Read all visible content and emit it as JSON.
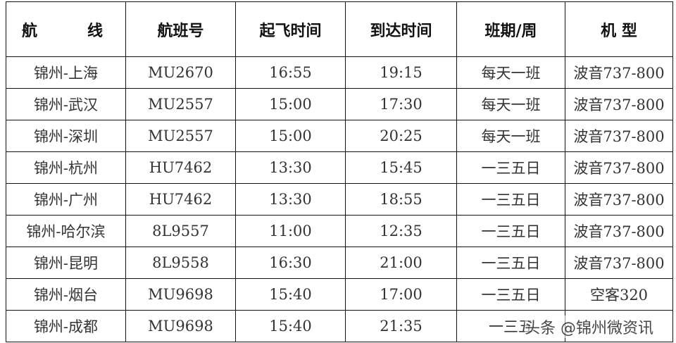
{
  "headers": {
    "route_a": "航",
    "route_b": "线",
    "flight": "航班号",
    "depart": "起飞时间",
    "arrive": "到达时间",
    "schedule": "班期/周",
    "aircraft": "机 型"
  },
  "rows": [
    {
      "route": "锦州-上海",
      "flight": "MU2670",
      "depart": "16:55",
      "arrive": "19:15",
      "schedule": "每天一班",
      "aircraft": "波音737-800"
    },
    {
      "route": "锦州-武汉",
      "flight": "MU2557",
      "depart": "15:00",
      "arrive": "17:30",
      "schedule": "每天一班",
      "aircraft": "波音737-800"
    },
    {
      "route": "锦州-深圳",
      "flight": "MU2557",
      "depart": "15:00",
      "arrive": "20:25",
      "schedule": "每天一班",
      "aircraft": "波音737-800"
    },
    {
      "route": "锦州-杭州",
      "flight": "HU7462",
      "depart": "13:30",
      "arrive": "15:45",
      "schedule": "一三五日",
      "aircraft": "波音737-800"
    },
    {
      "route": "锦州-广州",
      "flight": "HU7462",
      "depart": "13:30",
      "arrive": "18:55",
      "schedule": "一三五日",
      "aircraft": "波音737-800"
    },
    {
      "route": "锦州-哈尔滨",
      "flight": "8L9557",
      "depart": "11:00",
      "arrive": "12:35",
      "schedule": "一三五日",
      "aircraft": "波音737-800"
    },
    {
      "route": "锦州-昆明",
      "flight": "8L9558",
      "depart": "16:30",
      "arrive": "21:00",
      "schedule": "一三五日",
      "aircraft": "波音737-800"
    },
    {
      "route": "锦州-烟台",
      "flight": "MU9698",
      "depart": "15:40",
      "arrive": "17:00",
      "schedule": "一三五日",
      "aircraft": "空客320"
    },
    {
      "route": "锦州-成都",
      "flight": "MU9698",
      "depart": "15:40",
      "arrive": "21:35",
      "schedule": "一三五"
    }
  ],
  "watermark": "头条 @锦州微资讯"
}
